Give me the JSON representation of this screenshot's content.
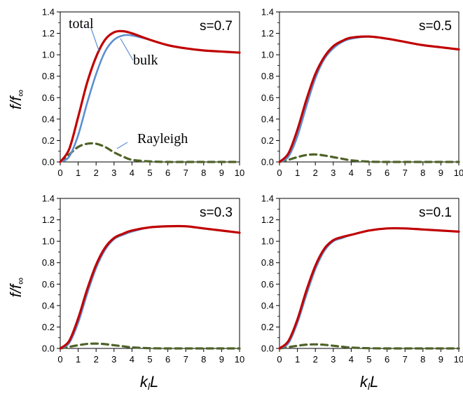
{
  "figure": {
    "y_axis_label": {
      "main": "f/f",
      "sub": "∞"
    },
    "x_axis_label": {
      "main": "k",
      "sub": "l",
      "tail": "L"
    },
    "annotations": {
      "total": "total",
      "bulk": "bulk",
      "rayleigh": "Rayleigh"
    },
    "colors": {
      "total": "#c00000",
      "bulk": "#5b8fd1",
      "rayleigh": "#4f6228",
      "frame": "#000000"
    }
  },
  "chart_data": [
    {
      "type": "line",
      "label": "s=0.7",
      "xlim": [
        0,
        10
      ],
      "ylim": [
        0,
        1.4
      ],
      "x_ticks": [
        "0",
        "1",
        "2",
        "3",
        "4",
        "5",
        "6",
        "7",
        "8",
        "9",
        "10"
      ],
      "y_ticks": [
        "0.0",
        "0.2",
        "0.4",
        "0.6",
        "0.8",
        "1.0",
        "1.2",
        "1.4"
      ],
      "x": [
        0,
        0.5,
        1,
        1.5,
        2,
        2.5,
        3,
        3.5,
        4,
        5,
        6,
        7,
        8,
        9,
        10
      ],
      "series": [
        {
          "name": "total",
          "style": "solid",
          "values": [
            0,
            0.12,
            0.42,
            0.74,
            0.98,
            1.14,
            1.21,
            1.22,
            1.2,
            1.14,
            1.09,
            1.06,
            1.04,
            1.03,
            1.02
          ]
        },
        {
          "name": "bulk",
          "style": "solid",
          "values": [
            0,
            0.05,
            0.25,
            0.55,
            0.82,
            1.03,
            1.14,
            1.18,
            1.18,
            1.14,
            1.09,
            1.06,
            1.04,
            1.03,
            1.02
          ]
        },
        {
          "name": "Rayleigh",
          "style": "dashed",
          "values": [
            0,
            0.07,
            0.14,
            0.17,
            0.17,
            0.14,
            0.09,
            0.05,
            0.02,
            0.005,
            0,
            0,
            0,
            0,
            0
          ]
        }
      ]
    },
    {
      "type": "line",
      "label": "s=0.5",
      "xlim": [
        0,
        10
      ],
      "ylim": [
        0,
        1.4
      ],
      "x_ticks": [
        "0",
        "1",
        "2",
        "3",
        "4",
        "5",
        "6",
        "7",
        "8",
        "9",
        "10"
      ],
      "y_ticks": [
        "0.0",
        "0.2",
        "0.4",
        "0.6",
        "0.8",
        "1.0",
        "1.2",
        "1.4"
      ],
      "x": [
        0,
        0.5,
        1,
        1.5,
        2,
        2.5,
        3,
        3.5,
        4,
        5,
        6,
        7,
        8,
        9,
        10
      ],
      "series": [
        {
          "name": "total",
          "style": "solid",
          "values": [
            0,
            0.08,
            0.3,
            0.58,
            0.82,
            0.98,
            1.08,
            1.13,
            1.16,
            1.17,
            1.15,
            1.12,
            1.09,
            1.07,
            1.05
          ]
        },
        {
          "name": "bulk",
          "style": "solid",
          "values": [
            0,
            0.05,
            0.24,
            0.52,
            0.78,
            0.96,
            1.06,
            1.12,
            1.15,
            1.17,
            1.15,
            1.12,
            1.09,
            1.07,
            1.05
          ]
        },
        {
          "name": "Rayleigh",
          "style": "dashed",
          "values": [
            0,
            0.02,
            0.045,
            0.065,
            0.07,
            0.06,
            0.045,
            0.03,
            0.015,
            0.003,
            0,
            0,
            0,
            0,
            0
          ]
        }
      ]
    },
    {
      "type": "line",
      "label": "s=0.3",
      "xlim": [
        0,
        10
      ],
      "ylim": [
        0,
        1.4
      ],
      "x_ticks": [
        "0",
        "1",
        "2",
        "3",
        "4",
        "5",
        "6",
        "7",
        "8",
        "9",
        "10"
      ],
      "y_ticks": [
        "0.0",
        "0.2",
        "0.4",
        "0.6",
        "0.8",
        "1.0",
        "1.2",
        "1.4"
      ],
      "x": [
        0,
        0.5,
        1,
        1.5,
        2,
        2.5,
        3,
        3.5,
        4,
        5,
        6,
        7,
        8,
        9,
        10
      ],
      "series": [
        {
          "name": "total",
          "style": "solid",
          "values": [
            0,
            0.07,
            0.28,
            0.55,
            0.78,
            0.94,
            1.03,
            1.07,
            1.1,
            1.13,
            1.14,
            1.14,
            1.12,
            1.1,
            1.08
          ]
        },
        {
          "name": "bulk",
          "style": "solid",
          "values": [
            0,
            0.05,
            0.24,
            0.51,
            0.75,
            0.92,
            1.02,
            1.06,
            1.09,
            1.13,
            1.14,
            1.14,
            1.12,
            1.1,
            1.08
          ]
        },
        {
          "name": "Rayleigh",
          "style": "dashed",
          "values": [
            0,
            0.015,
            0.03,
            0.042,
            0.045,
            0.04,
            0.03,
            0.02,
            0.01,
            0.002,
            0,
            0,
            0,
            0,
            0
          ]
        }
      ]
    },
    {
      "type": "line",
      "label": "s=0.1",
      "xlim": [
        0,
        10
      ],
      "ylim": [
        0,
        1.4
      ],
      "x_ticks": [
        "0",
        "1",
        "2",
        "3",
        "4",
        "5",
        "6",
        "7",
        "8",
        "9",
        "10"
      ],
      "y_ticks": [
        "0.0",
        "0.2",
        "0.4",
        "0.6",
        "0.8",
        "1.0",
        "1.2",
        "1.4"
      ],
      "x": [
        0,
        0.5,
        1,
        1.5,
        2,
        2.5,
        3,
        3.5,
        4,
        5,
        6,
        7,
        8,
        9,
        10
      ],
      "series": [
        {
          "name": "total",
          "style": "solid",
          "values": [
            0,
            0.07,
            0.27,
            0.54,
            0.77,
            0.93,
            1.01,
            1.04,
            1.06,
            1.1,
            1.12,
            1.12,
            1.11,
            1.1,
            1.09
          ]
        },
        {
          "name": "bulk",
          "style": "solid",
          "values": [
            0,
            0.05,
            0.24,
            0.5,
            0.74,
            0.91,
            1.0,
            1.03,
            1.06,
            1.1,
            1.12,
            1.12,
            1.11,
            1.1,
            1.09
          ]
        },
        {
          "name": "Rayleigh",
          "style": "dashed",
          "values": [
            0,
            0.012,
            0.025,
            0.035,
            0.038,
            0.034,
            0.025,
            0.016,
            0.008,
            0.002,
            0,
            0,
            0,
            0,
            0
          ]
        }
      ]
    }
  ]
}
